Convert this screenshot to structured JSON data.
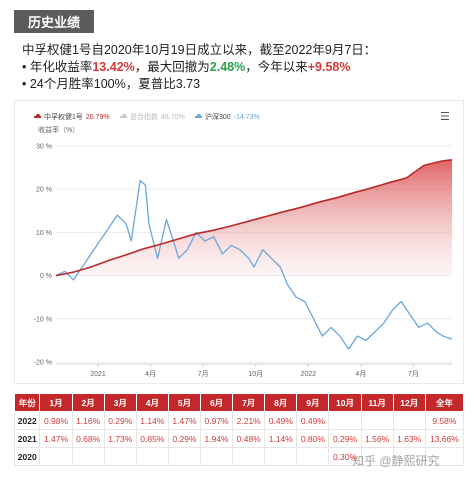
{
  "header": {
    "title": "历史业绩"
  },
  "summary": {
    "line1": "中孚权健1号自2020年10月19日成立以来，截至2022年9月7日：",
    "annual_prefix": "• 年化收益率",
    "annual_value": "13.42%",
    "drawdown_prefix": "，最大回撤为",
    "drawdown_value": "2.48%",
    "ytd_prefix": "，今年以来",
    "ytd_value": "+9.58%",
    "line3": "• 24个月胜率100%，夏普比3.73"
  },
  "chart_data": {
    "type": "area",
    "legend": [
      {
        "name": "中孚权健1号",
        "value": "26.79%",
        "color": "#b92a2a"
      },
      {
        "name": "复合指数",
        "value": "48.70%",
        "color": "#c8c8c8"
      },
      {
        "name": "沪深300",
        "value": "-14.73%",
        "color": "#68a8e0"
      }
    ],
    "ylabel": "收益率（%）",
    "ylim": [
      -20,
      30
    ],
    "y_ticks": [
      "30 %",
      "20 %",
      "10 %",
      "0 %",
      "-10 %",
      "-20 %"
    ],
    "y_tick_values": [
      30,
      20,
      10,
      0,
      -10,
      -20
    ],
    "x_range": [
      0,
      22.6
    ],
    "x_ticks": [
      "2021",
      "4月",
      "7月",
      "10月",
      "2022",
      "4月",
      "7月"
    ],
    "x_tick_positions": [
      2.4,
      5.4,
      8.4,
      11.4,
      14.4,
      17.4,
      20.4
    ],
    "series": [
      {
        "name": "中孚权健1号",
        "color": "#b92a2a",
        "points": [
          [
            0,
            0
          ],
          [
            1,
            0.8
          ],
          [
            2,
            2
          ],
          [
            3,
            3.5
          ],
          [
            4,
            4.8
          ],
          [
            5,
            6.2
          ],
          [
            6,
            7.3
          ],
          [
            7,
            8.5
          ],
          [
            8,
            9.7
          ],
          [
            9,
            10.5
          ],
          [
            10,
            11.5
          ],
          [
            11,
            12.6
          ],
          [
            12,
            13.7
          ],
          [
            13,
            14.8
          ],
          [
            14,
            15.8
          ],
          [
            15,
            17
          ],
          [
            16,
            18
          ],
          [
            17,
            19.2
          ],
          [
            18,
            20.3
          ],
          [
            19,
            21.5
          ],
          [
            20,
            22.6
          ],
          [
            21,
            25.5
          ],
          [
            22,
            26.5
          ],
          [
            22.6,
            26.8
          ]
        ]
      },
      {
        "name": "沪深300",
        "color": "#68a8e0",
        "points": [
          [
            0,
            0
          ],
          [
            0.5,
            1
          ],
          [
            1,
            -1
          ],
          [
            1.5,
            2
          ],
          [
            2,
            5
          ],
          [
            2.5,
            8
          ],
          [
            3,
            11
          ],
          [
            3.5,
            14
          ],
          [
            4,
            12
          ],
          [
            4.3,
            8
          ],
          [
            4.8,
            22
          ],
          [
            5.1,
            21
          ],
          [
            5.3,
            12
          ],
          [
            5.8,
            4
          ],
          [
            6.3,
            13
          ],
          [
            6.7,
            8
          ],
          [
            7,
            4
          ],
          [
            7.5,
            6
          ],
          [
            8,
            10
          ],
          [
            8.5,
            8
          ],
          [
            9,
            9
          ],
          [
            9.5,
            5
          ],
          [
            10,
            7
          ],
          [
            10.5,
            6
          ],
          [
            11,
            4
          ],
          [
            11.3,
            2
          ],
          [
            11.8,
            6
          ],
          [
            12.3,
            4
          ],
          [
            12.8,
            2
          ],
          [
            13.2,
            -2
          ],
          [
            13.7,
            -5
          ],
          [
            14.2,
            -6
          ],
          [
            14.7,
            -10
          ],
          [
            15.2,
            -14
          ],
          [
            15.7,
            -12
          ],
          [
            16.2,
            -14
          ],
          [
            16.7,
            -17
          ],
          [
            17.2,
            -14
          ],
          [
            17.7,
            -15
          ],
          [
            18.2,
            -13
          ],
          [
            18.7,
            -11
          ],
          [
            19.2,
            -8
          ],
          [
            19.7,
            -6
          ],
          [
            20.2,
            -9
          ],
          [
            20.7,
            -12
          ],
          [
            21.2,
            -11
          ],
          [
            21.7,
            -13
          ],
          [
            22.1,
            -14
          ],
          [
            22.6,
            -14.7
          ]
        ]
      }
    ]
  },
  "table": {
    "headers": [
      "年份",
      "1月",
      "2月",
      "3月",
      "4月",
      "5月",
      "6月",
      "7月",
      "8月",
      "9月",
      "10月",
      "11月",
      "12月",
      "全年"
    ],
    "rows": [
      [
        "2022",
        "0.98%",
        "1.16%",
        "0.29%",
        "1.14%",
        "1.47%",
        "0.97%",
        "2.21%",
        "0.49%",
        "0.49%",
        "",
        "",
        "",
        "9.58%"
      ],
      [
        "2021",
        "1.47%",
        "0.68%",
        "1.73%",
        "0.85%",
        "0.29%",
        "1.94%",
        "0.48%",
        "1.14%",
        "0.80%",
        "0.29%",
        "1.56%",
        "1.63%",
        "13.66%"
      ],
      [
        "2020",
        "",
        "",
        "",
        "",
        "",
        "",
        "",
        "",
        "",
        "0.30%",
        "",
        "",
        ""
      ]
    ]
  },
  "watermark": "知乎 @静熙研究"
}
